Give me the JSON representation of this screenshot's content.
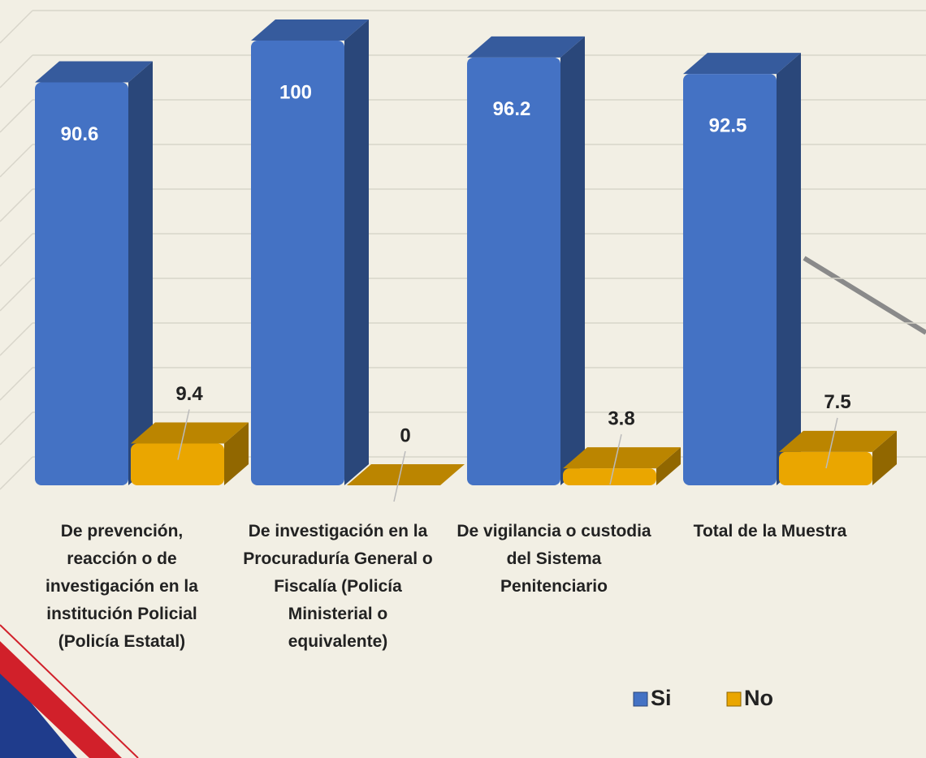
{
  "chart_data": {
    "type": "bar3d",
    "categories": [
      "De prevención, reacción o de investigación en la institución Policial (Policía Estatal)",
      "De investigación en la Procuraduría General o Fiscalía (Policía Ministerial o equivalente)",
      "De vigilancia o custodia del Sistema Penitenciario",
      "Total de la Muestra"
    ],
    "series": [
      {
        "name": "Si",
        "color": "#4472c4",
        "values": [
          90.6,
          100,
          96.2,
          92.5
        ]
      },
      {
        "name": "No",
        "color": "#eaa600",
        "values": [
          9.4,
          0,
          3.8,
          7.5
        ]
      }
    ],
    "ylim": [
      0,
      100
    ],
    "grid": true,
    "legend": "bottom-right"
  }
}
